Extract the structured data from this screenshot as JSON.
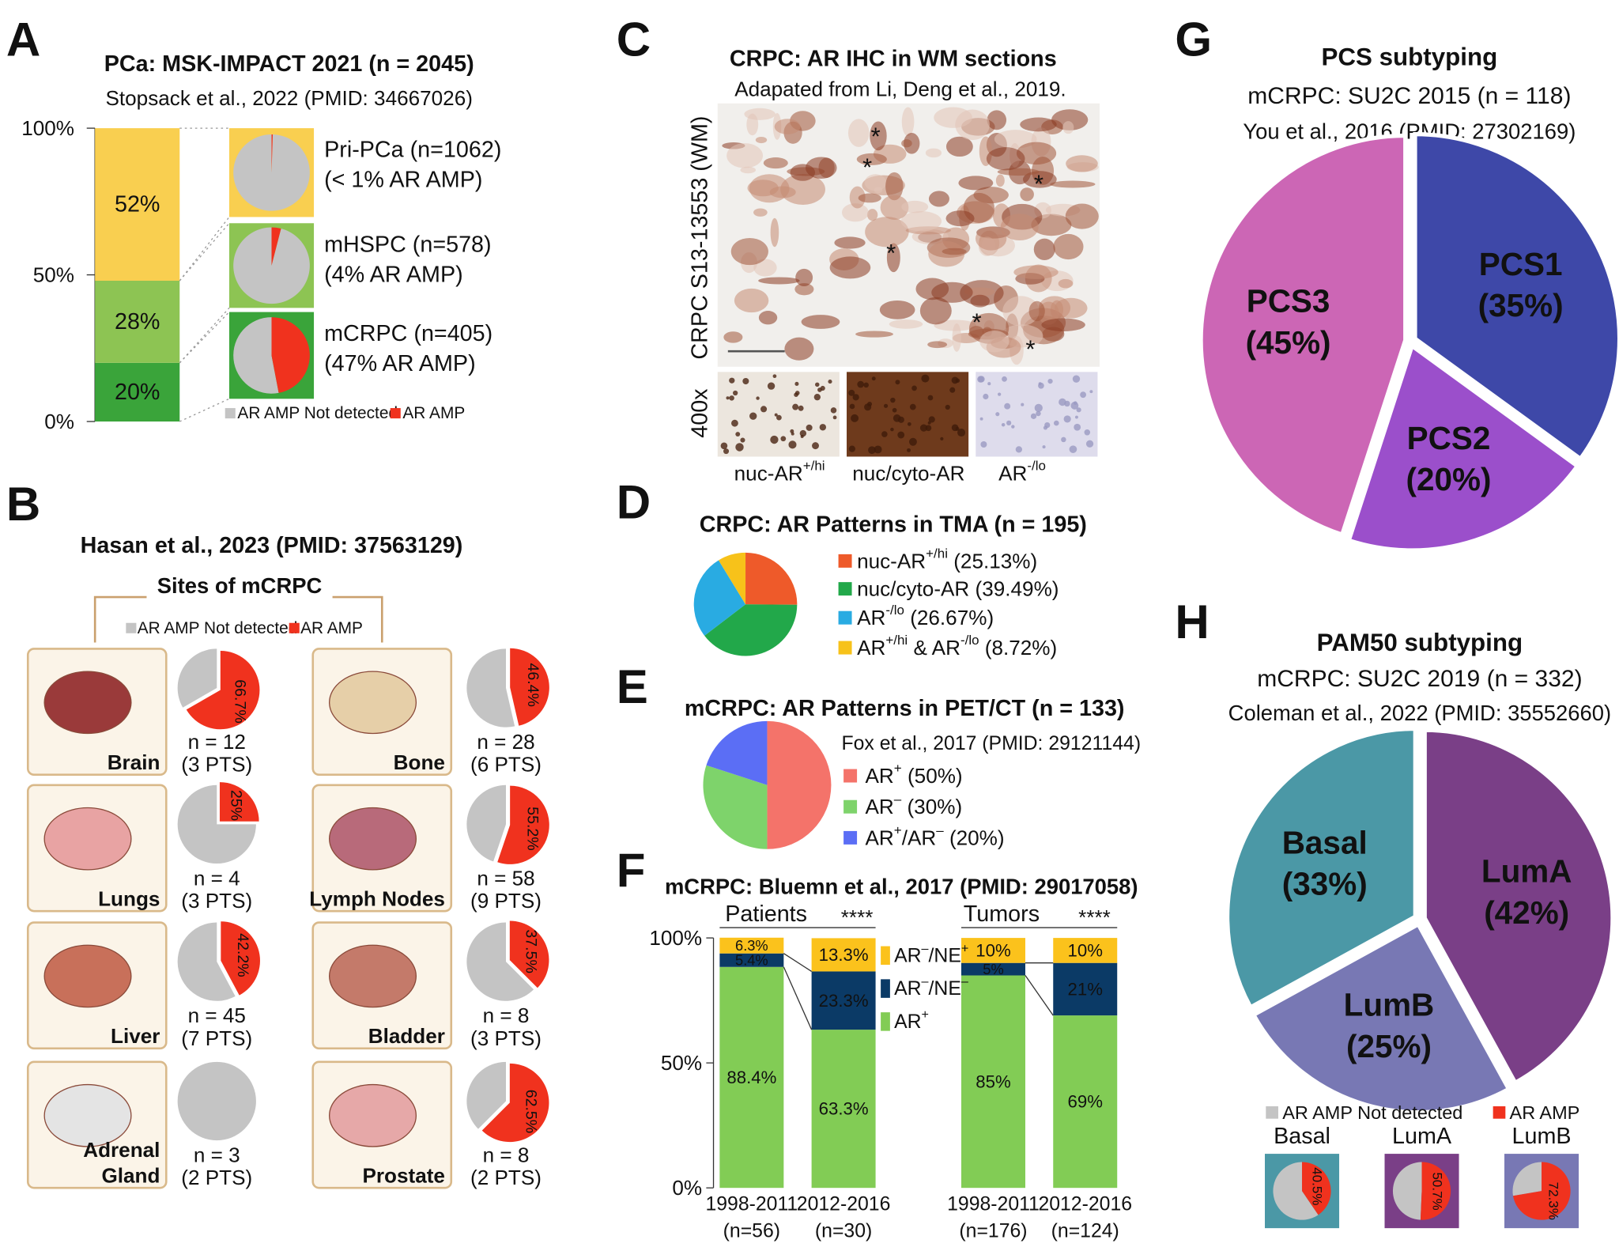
{
  "chart_data": [
    {
      "type": "stacked_bar",
      "panel": "A",
      "title": "PCa: MSK-IMPACT 2021 (n = 2045)",
      "subtitle": "Stopsack et al., 2022 (PMID: 34667026)",
      "ylim": [
        0,
        100
      ],
      "yticks": [
        {
          "value": 0,
          "label": "0%"
        },
        {
          "value": 50,
          "label": "50%"
        },
        {
          "value": 100,
          "label": "100%"
        }
      ],
      "series": [
        {
          "color": "#3aa43a",
          "values": [
            20
          ],
          "value_labels": [
            "20%"
          ]
        },
        {
          "color": "#8dc453",
          "values": [
            28
          ],
          "value_labels": [
            "28%"
          ]
        },
        {
          "color": "#f9cf50",
          "values": [
            52
          ],
          "value_labels": [
            "52%"
          ]
        }
      ],
      "pie_series": [
        {
          "name": "AR AMP Not detected",
          "color": "#c4c4c4"
        },
        {
          "name": "AR AMP",
          "color": "#f0321e"
        }
      ],
      "pies": [
        {
          "lines": [
            "Pri-PCa (n=1062)",
            "(< 1% AR AMP)"
          ],
          "values": [
            99.5,
            0.5
          ]
        },
        {
          "lines": [
            "mHSPC (n=578)",
            "(4% AR AMP)"
          ],
          "values": [
            96,
            4
          ]
        },
        {
          "lines": [
            "mCRPC (n=405)",
            "(47% AR AMP)"
          ],
          "values": [
            53,
            47
          ]
        }
      ]
    },
    {
      "type": "pie_grid",
      "panel": "B",
      "title": "Hasan et al., 2023 (PMID: 37563129)",
      "group_label": "Sites of mCRPC",
      "pie_series": [
        {
          "name": "AR AMP Not detected",
          "color": "#c4c4c4"
        },
        {
          "name": "AR AMP",
          "color": "#f0321e"
        }
      ],
      "sites": [
        {
          "name": [
            "Brain"
          ],
          "values": [
            33.3,
            66.7
          ],
          "value_label": "66.7%",
          "n": "n = 12",
          "pts": "(3 PTS)"
        },
        {
          "name": [
            "Bone"
          ],
          "values": [
            53.6,
            46.4
          ],
          "value_label": "46.4%",
          "n": "n = 28",
          "pts": "(6 PTS)"
        },
        {
          "name": [
            "Lungs"
          ],
          "values": [
            75,
            25
          ],
          "value_label": "25%",
          "n": "n = 4",
          "pts": "(3 PTS)"
        },
        {
          "name": [
            "Lymph Nodes"
          ],
          "values": [
            44.8,
            55.2
          ],
          "value_label": "55.2%",
          "n": "n = 58",
          "pts": "(9 PTS)"
        },
        {
          "name": [
            "Liver"
          ],
          "values": [
            57.8,
            42.2
          ],
          "value_label": "42.2%",
          "n": "n = 45",
          "pts": "(7 PTS)"
        },
        {
          "name": [
            "Bladder"
          ],
          "values": [
            62.5,
            37.5
          ],
          "value_label": "37.5%",
          "n": "n = 8",
          "pts": "(3 PTS)"
        },
        {
          "name": [
            "Adrenal",
            "Gland"
          ],
          "values": [
            100,
            0
          ],
          "value_label": null,
          "n": "n = 3",
          "pts": "(2 PTS)"
        },
        {
          "name": [
            "Prostate"
          ],
          "values": [
            37.5,
            62.5
          ],
          "value_label": "62.5%",
          "n": "n = 8",
          "pts": "(2 PTS)"
        }
      ]
    },
    {
      "type": "image",
      "panel": "C",
      "title": "CRPC: AR IHC in WM sections",
      "subtitle": "Adapated from Li, Deng et al., 2019.",
      "side_label": "CRPC S13-13553 (WM)",
      "zoom_label": "400x",
      "annotations": [
        "*",
        "*",
        "*",
        "*",
        "*",
        "*"
      ],
      "captions": [
        {
          "parts": [
            "nuc-AR",
            "+/hi"
          ],
          "color": "#e0302a"
        },
        {
          "parts": [
            "nuc/cyto-AR"
          ],
          "color": "#1aa050"
        },
        {
          "parts": [
            "AR",
            "-/lo"
          ],
          "color": "#4a5aa8"
        }
      ]
    },
    {
      "type": "pie",
      "panel": "D",
      "title": "CRPC: AR Patterns in TMA (n = 195)",
      "categories": [
        [
          "nuc-AR",
          "+/hi",
          " (25.13%)"
        ],
        [
          "nuc/cyto-AR (39.49%)"
        ],
        [
          "AR",
          "-/lo",
          " (26.67%)"
        ],
        [
          "AR",
          "+/hi",
          " & AR",
          "-/lo",
          " (8.72%)"
        ]
      ],
      "values": [
        25.13,
        39.49,
        26.67,
        8.72
      ],
      "colors": [
        "#ee5a2a",
        "#22a84a",
        "#29abe2",
        "#f7c21a"
      ]
    },
    {
      "type": "pie",
      "panel": "E",
      "title": "mCRPC: AR Patterns in PET/CT (n = 133)",
      "subtitle": "Fox et al., 2017 (PMID: 29121144)",
      "categories": [
        [
          "AR",
          "+",
          " (50%)"
        ],
        [
          "AR",
          "–",
          " (30%)"
        ],
        [
          "AR",
          "+",
          "/AR",
          "–",
          " (20%)"
        ]
      ],
      "values": [
        50,
        30,
        20
      ],
      "colors": [
        "#f4736a",
        "#7ed36b",
        "#5b6ef5"
      ]
    },
    {
      "type": "grouped_stacked_bar",
      "panel": "F",
      "title": "mCRPC: Bluemn et al., 2017 (PMID: 29017058)",
      "groups": [
        "Patients",
        "Tumors"
      ],
      "significance": [
        "****",
        "****"
      ],
      "categories": [
        "1998-2011",
        "2012-2016",
        "1998-2011",
        "2012-2016"
      ],
      "category_n": [
        "(n=56)",
        "(n=30)",
        "(n=176)",
        "(n=124)"
      ],
      "ylim": [
        0,
        100
      ],
      "yticks": [
        {
          "value": 0,
          "label": "0%"
        },
        {
          "value": 50,
          "label": "50%"
        },
        {
          "value": 100,
          "label": "100%"
        }
      ],
      "series": [
        {
          "name": [
            "AR",
            "+"
          ],
          "color": "#82cc55",
          "values": [
            88.4,
            63.3,
            85,
            69
          ],
          "value_labels": [
            "88.4%",
            "63.3%",
            "85%",
            "69%"
          ]
        },
        {
          "name": [
            "AR",
            "–",
            "/NE",
            "–"
          ],
          "color": "#0b3a66",
          "values": [
            5.4,
            23.3,
            5,
            21
          ],
          "value_labels": [
            "5.4%",
            "23.3%",
            "5%",
            "21%"
          ]
        },
        {
          "name": [
            "AR",
            "–",
            "/NE",
            "+"
          ],
          "color": "#fbc21c",
          "values": [
            6.3,
            13.3,
            10,
            10
          ],
          "value_labels": [
            "6.3%",
            "13.3%",
            "10%",
            "10%"
          ]
        }
      ]
    },
    {
      "type": "pie",
      "panel": "G",
      "title": "PCS subtyping",
      "subtitle": "mCRPC: SU2C 2015 (n = 118)",
      "citation": "You et al., 2016 (PMID: 27302169)",
      "categories": [
        "PCS1",
        "PCS2",
        "PCS3"
      ],
      "values": [
        35,
        20,
        45
      ],
      "value_labels": [
        "(35%)",
        "(20%)",
        "(45%)"
      ],
      "colors": [
        "#3e48a8",
        "#9b4fcb",
        "#cc66b5"
      ]
    },
    {
      "type": "pie",
      "panel": "H",
      "title": "PAM50 subtyping",
      "subtitle": "mCRPC: SU2C 2019 (n = 332)",
      "citation": "Coleman et al., 2022 (PMID: 35552660)",
      "categories": [
        "LumA",
        "LumB",
        "Basal"
      ],
      "values": [
        42,
        25,
        33
      ],
      "value_labels": [
        "(42%)",
        "(25%)",
        "(33%)"
      ],
      "colors": [
        "#7a3f87",
        "#7878b4",
        "#4b98a6"
      ],
      "insets": {
        "series": [
          {
            "name": "AR AMP Not detected",
            "color": "#c4c4c4"
          },
          {
            "name": "AR AMP",
            "color": "#f0321e"
          }
        ],
        "items": [
          {
            "name": "Basal",
            "values": [
              59.5,
              40.5
            ],
            "value_label": "40.5%"
          },
          {
            "name": "LumA",
            "values": [
              49.3,
              50.7
            ],
            "value_label": "50.7%"
          },
          {
            "name": "LumB",
            "values": [
              27.7,
              72.3
            ],
            "value_label": "72.3%"
          }
        ]
      }
    }
  ]
}
